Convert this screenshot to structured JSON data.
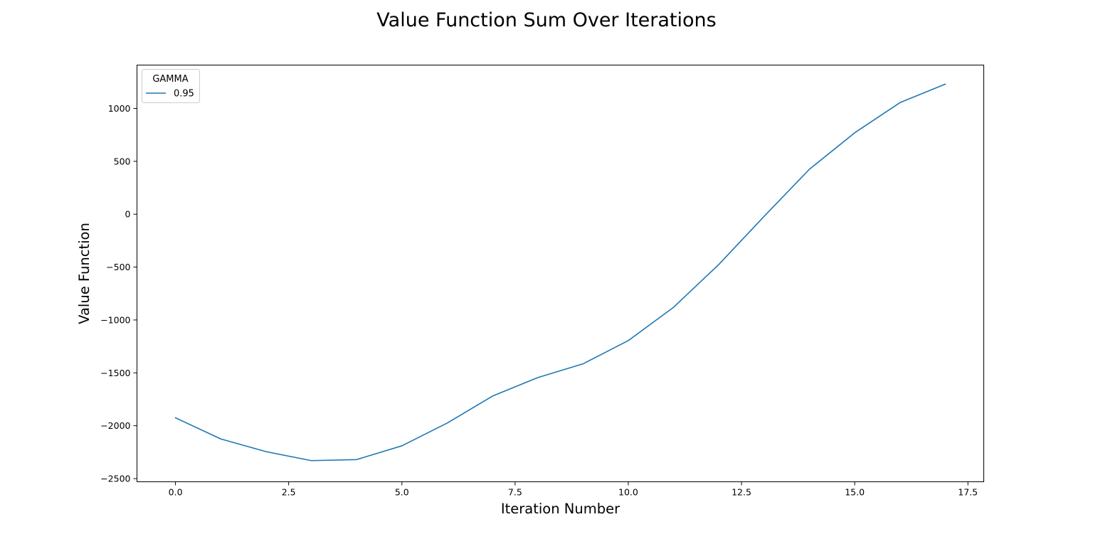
{
  "chart_data": {
    "type": "line",
    "title": "Value Function Sum Over Iterations",
    "xlabel": "Iteration Number",
    "ylabel": "Value Function",
    "xlim": [
      -0.85,
      17.85
    ],
    "ylim": [
      -2530,
      1410
    ],
    "x_ticks": [
      0.0,
      2.5,
      5.0,
      7.5,
      10.0,
      12.5,
      15.0,
      17.5
    ],
    "x_tick_labels": [
      "0.0",
      "2.5",
      "5.0",
      "7.5",
      "10.0",
      "12.5",
      "15.0",
      "17.5"
    ],
    "y_ticks": [
      -2500,
      -2000,
      -1500,
      -1000,
      -500,
      0,
      500,
      1000
    ],
    "y_tick_labels": [
      "−2500",
      "−2000",
      "−1500",
      "−1000",
      "−500",
      "0",
      "500",
      "1000"
    ],
    "grid": false,
    "legend": {
      "title": "GAMMA",
      "position": "top-left"
    },
    "series": [
      {
        "name": "0.95",
        "color": "#1f77b4",
        "x": [
          0,
          1,
          2,
          3,
          4,
          5,
          6,
          7,
          8,
          9,
          10,
          11,
          12,
          13,
          14,
          15,
          16,
          17
        ],
        "values": [
          -1925,
          -2125,
          -2245,
          -2330,
          -2320,
          -2190,
          -1975,
          -1720,
          -1545,
          -1415,
          -1195,
          -880,
          -475,
          -20,
          425,
          770,
          1055,
          1230
        ]
      }
    ]
  }
}
